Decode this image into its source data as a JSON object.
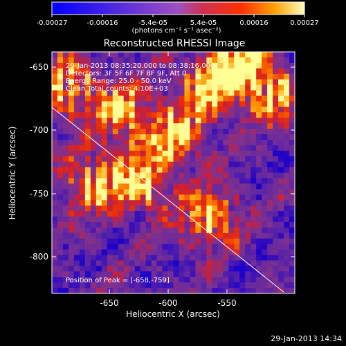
{
  "colorbar": {
    "ticks": [
      "-0.00027",
      "-0.00016",
      "-5.4e-05",
      "5.4e-05",
      "0.00016",
      "0.00027"
    ],
    "units_line": "(photons cm⁻² s⁻¹ asec⁻²)"
  },
  "plot": {
    "title": "Reconstructed RHESSI Image",
    "info_lines": [
      "29-Jan-2013 08:35:20.000 to 08:38:16.000",
      "Detectors: 3F 5F 6F 7F 8F 9F, Att 0",
      "Energy Range: 25.0 - 50.0 keV",
      "Clean    Total counts: 4.10E+03"
    ],
    "peak_label": "Position of Peak = [-658,-759]",
    "xlabel": "Heliocentric X (arcsec)",
    "ylabel": "Heliocentric Y (arcsec)",
    "xticks": [
      "-650",
      "-600",
      "-550"
    ],
    "yticks": [
      "-650",
      "-700",
      "-750",
      "-800"
    ]
  },
  "footer_timestamp": "29-Jan-2013 14:34",
  "colors": {
    "low": "#0000ff",
    "mid": "#8a3fb0",
    "high": "#ffff80",
    "background": "#000000"
  }
}
